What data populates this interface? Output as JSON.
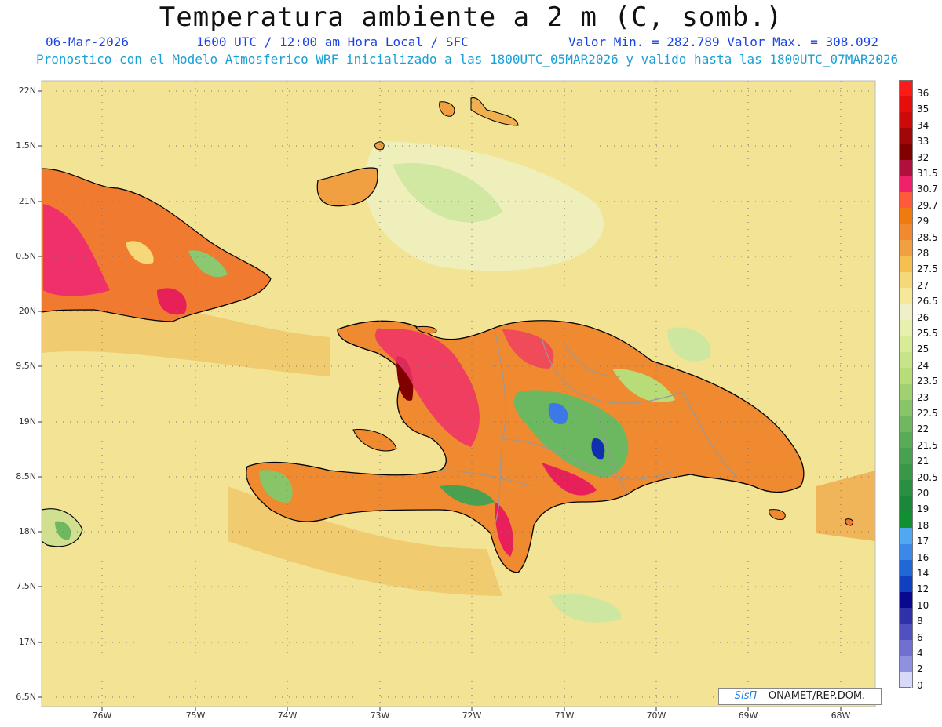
{
  "header": {
    "title": "Temperatura ambiente a 2 m (C, somb.)",
    "date": "06-Mar-2026",
    "time": "1600 UTC / 12:00 am Hora Local / SFC",
    "minmax": "Valor Min. = 282.789  Valor Max. = 308.092",
    "model_info": "Pronostico con el Modelo Atmosferico WRF inicializado a las 1800UTC_05MAR2026 y valido hasta las  1800UTC_07MAR2026"
  },
  "axes": {
    "lat_labels": [
      "22N",
      "1.5N",
      "21N",
      "0.5N",
      "20N",
      "9.5N",
      "19N",
      "8.5N",
      "18N",
      "7.5N",
      "17N",
      "6.5N"
    ],
    "lon_labels": [
      "76W",
      "75W",
      "74W",
      "73W",
      "72W",
      "71W",
      "70W",
      "69W",
      "68W"
    ]
  },
  "colorbar": {
    "labels": [
      "36",
      "35",
      "34",
      "33",
      "32",
      "31.5",
      "30.7",
      "29.7",
      "29",
      "28.5",
      "28",
      "27.5",
      "27",
      "26.5",
      "26",
      "25.5",
      "25",
      "24",
      "23.5",
      "23",
      "22.5",
      "22",
      "21.5",
      "21",
      "20.5",
      "20",
      "19",
      "18",
      "17",
      "16",
      "14",
      "12",
      "10",
      "8",
      "6",
      "4",
      "2",
      "0"
    ],
    "colors": [
      "#ff1a1a",
      "#e60d0d",
      "#cc0a0a",
      "#a00808",
      "#800000",
      "#b0103c",
      "#f0206a",
      "#ff5a3c",
      "#f07a10",
      "#f08a30",
      "#f0a040",
      "#f5c050",
      "#f5d878",
      "#f5e898",
      "#f0f0c8",
      "#e8f0b0",
      "#d8ec98",
      "#c8e488",
      "#b8dc78",
      "#a0d070",
      "#88c468",
      "#70b860",
      "#58ac58",
      "#48a050",
      "#389848",
      "#289040",
      "#1a8838",
      "#109030",
      "#50a8f0",
      "#3c88e8",
      "#2068d8",
      "#1040c0",
      "#080890",
      "#3030a8",
      "#5050c0",
      "#7070d0",
      "#9090e0",
      "#d8d8f8"
    ]
  },
  "map": {
    "ocean_color": "#f2e494",
    "credit_logo": "SisΠ",
    "credit_text": "– ONAMET/REP.DOM."
  }
}
